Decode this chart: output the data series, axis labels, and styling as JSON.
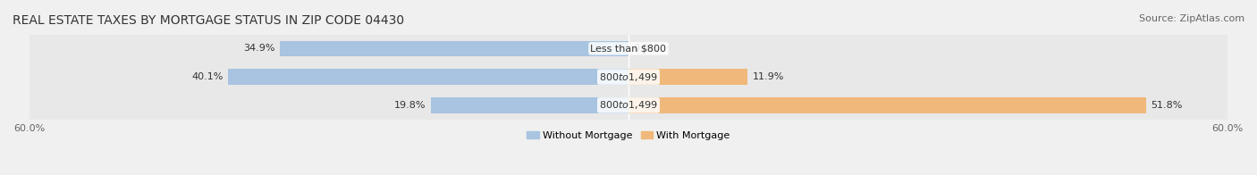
{
  "title": "REAL ESTATE TAXES BY MORTGAGE STATUS IN ZIP CODE 04430",
  "source": "Source: ZipAtlas.com",
  "rows": [
    {
      "label": "Less than $800",
      "without": 34.9,
      "with": 0.0
    },
    {
      "label": "$800 to $1,499",
      "without": 40.1,
      "with": 11.9
    },
    {
      "label": "$800 to $1,499",
      "without": 19.8,
      "with": 51.8
    }
  ],
  "xlim": [
    -60,
    60
  ],
  "xtick_labels": [
    "60.0%",
    "60.0%"
  ],
  "color_without": "#a8c4e0",
  "color_with": "#f0b87a",
  "bar_height": 0.55,
  "bg_color": "#f0f0f0",
  "row_bg_color": "#e8e8e8",
  "title_fontsize": 10,
  "source_fontsize": 8,
  "label_fontsize": 8,
  "tick_fontsize": 8,
  "legend_fontsize": 8
}
